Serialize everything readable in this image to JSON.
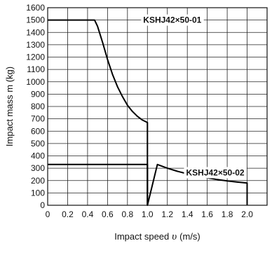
{
  "chart_data": {
    "type": "line",
    "xlabel": "Impact speed",
    "xlabel_symbol": "υ",
    "xlabel_unit": "(m/s)",
    "ylabel": "Impact mass m (kg)",
    "xlim": [
      0,
      2.2
    ],
    "ylim": [
      0,
      1600
    ],
    "x_ticks": [
      0,
      0.2,
      0.4,
      0.6,
      0.8,
      1.0,
      1.2,
      1.4,
      1.6,
      1.8,
      2.0
    ],
    "x_tick_labels": [
      "0",
      "0.2",
      "0.4",
      "0.6",
      "0.8",
      "1.0",
      "1.2",
      "1.4",
      "1.6",
      "1.8",
      "2.0"
    ],
    "y_ticks": [
      0,
      100,
      200,
      300,
      400,
      500,
      600,
      700,
      800,
      900,
      1000,
      1100,
      1200,
      1300,
      1400,
      1500,
      1600
    ],
    "grid": true,
    "series": [
      {
        "name": "KSHJ42×50-01",
        "x": [
          0,
          0.47,
          0.5,
          0.55,
          0.6,
          0.65,
          0.7,
          0.75,
          0.8,
          0.85,
          0.9,
          0.95,
          1.0,
          1.0
        ],
        "y": [
          1500,
          1500,
          1450,
          1320,
          1180,
          1060,
          960,
          880,
          810,
          760,
          720,
          690,
          670,
          0
        ]
      },
      {
        "name": "KSHJ42×50-02",
        "x": [
          0,
          1.0,
          1.0,
          1.1,
          1.2,
          1.3,
          1.4,
          1.5,
          1.6,
          1.7,
          1.8,
          1.9,
          2.0,
          2.0
        ],
        "y": [
          330,
          330,
          0,
          330,
          300,
          275,
          255,
          237,
          222,
          208,
          197,
          188,
          180,
          0
        ]
      }
    ]
  }
}
